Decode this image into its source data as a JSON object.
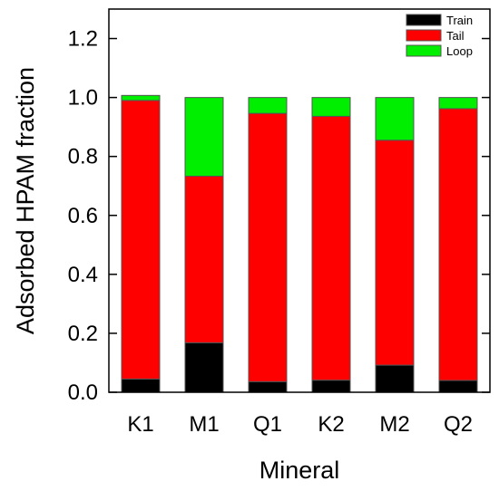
{
  "chart_data": {
    "type": "bar",
    "stacked": true,
    "categories": [
      "K1",
      "M1",
      "Q1",
      "K2",
      "M2",
      "Q2"
    ],
    "series": [
      {
        "name": "Train",
        "color": "#000000",
        "values": [
          0.045,
          0.168,
          0.036,
          0.041,
          0.092,
          0.04
        ]
      },
      {
        "name": "Tail",
        "color": "#ff0000",
        "values": [
          0.945,
          0.565,
          0.91,
          0.895,
          0.763,
          0.922
        ]
      },
      {
        "name": "Loop",
        "color": "#00ee00",
        "values": [
          0.017,
          0.267,
          0.054,
          0.064,
          0.145,
          0.038
        ]
      }
    ],
    "xlabel": "Mineral",
    "ylabel": "Adsorbed HPAM fraction",
    "ylim": [
      0,
      1.3
    ],
    "yticks": [
      0.0,
      0.2,
      0.4,
      0.6,
      0.8,
      1.0,
      1.2
    ],
    "ytick_labels": [
      "0.0",
      "0.2",
      "0.4",
      "0.6",
      "0.8",
      "1.0",
      "1.2"
    ],
    "grid": false,
    "legend_position": "top-right"
  }
}
